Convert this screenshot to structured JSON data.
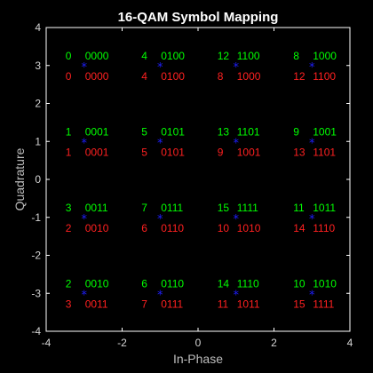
{
  "colors": {
    "background": "#000000",
    "axes": "#ffffff",
    "text": "#ffffff",
    "gray": "#bdbdbd",
    "marker": "#1f1fff",
    "gray_coded": "#00ff00",
    "binary_coded": "#ff2020"
  },
  "chart_data": {
    "type": "scatter",
    "title": "16-QAM Symbol Mapping",
    "xlabel": "In-Phase",
    "ylabel": "Quadrature",
    "xlim": [
      -4,
      4
    ],
    "ylim": [
      -4,
      4
    ],
    "xticks": [
      -4,
      -2,
      0,
      2,
      4
    ],
    "yticks": [
      -4,
      -3,
      -2,
      -1,
      0,
      1,
      2,
      3,
      4
    ],
    "grid": false,
    "marker": "*",
    "points": [
      {
        "x": -3,
        "y": 3,
        "gray_label": [
          "0",
          "0000"
        ],
        "binary_label": [
          "0",
          "0000"
        ]
      },
      {
        "x": -1,
        "y": 3,
        "gray_label": [
          "4",
          "0100"
        ],
        "binary_label": [
          "4",
          "0100"
        ]
      },
      {
        "x": 1,
        "y": 3,
        "gray_label": [
          "12",
          "1100"
        ],
        "binary_label": [
          "8",
          "1000"
        ]
      },
      {
        "x": 3,
        "y": 3,
        "gray_label": [
          "8",
          "1000"
        ],
        "binary_label": [
          "12",
          "1100"
        ]
      },
      {
        "x": -3,
        "y": 1,
        "gray_label": [
          "1",
          "0001"
        ],
        "binary_label": [
          "1",
          "0001"
        ]
      },
      {
        "x": -1,
        "y": 1,
        "gray_label": [
          "5",
          "0101"
        ],
        "binary_label": [
          "5",
          "0101"
        ]
      },
      {
        "x": 1,
        "y": 1,
        "gray_label": [
          "13",
          "1101"
        ],
        "binary_label": [
          "9",
          "1001"
        ]
      },
      {
        "x": 3,
        "y": 1,
        "gray_label": [
          "9",
          "1001"
        ],
        "binary_label": [
          "13",
          "1101"
        ]
      },
      {
        "x": -3,
        "y": -1,
        "gray_label": [
          "3",
          "0011"
        ],
        "binary_label": [
          "2",
          "0010"
        ]
      },
      {
        "x": -1,
        "y": -1,
        "gray_label": [
          "7",
          "0111"
        ],
        "binary_label": [
          "6",
          "0110"
        ]
      },
      {
        "x": 1,
        "y": -1,
        "gray_label": [
          "15",
          "1111"
        ],
        "binary_label": [
          "10",
          "1010"
        ]
      },
      {
        "x": 3,
        "y": -1,
        "gray_label": [
          "11",
          "1011"
        ],
        "binary_label": [
          "14",
          "1110"
        ]
      },
      {
        "x": -3,
        "y": -3,
        "gray_label": [
          "2",
          "0010"
        ],
        "binary_label": [
          "3",
          "0011"
        ]
      },
      {
        "x": -1,
        "y": -3,
        "gray_label": [
          "6",
          "0110"
        ],
        "binary_label": [
          "7",
          "0111"
        ]
      },
      {
        "x": 1,
        "y": -3,
        "gray_label": [
          "14",
          "1110"
        ],
        "binary_label": [
          "11",
          "1011"
        ]
      },
      {
        "x": 3,
        "y": -3,
        "gray_label": [
          "10",
          "1010"
        ],
        "binary_label": [
          "15",
          "1111"
        ]
      }
    ]
  }
}
